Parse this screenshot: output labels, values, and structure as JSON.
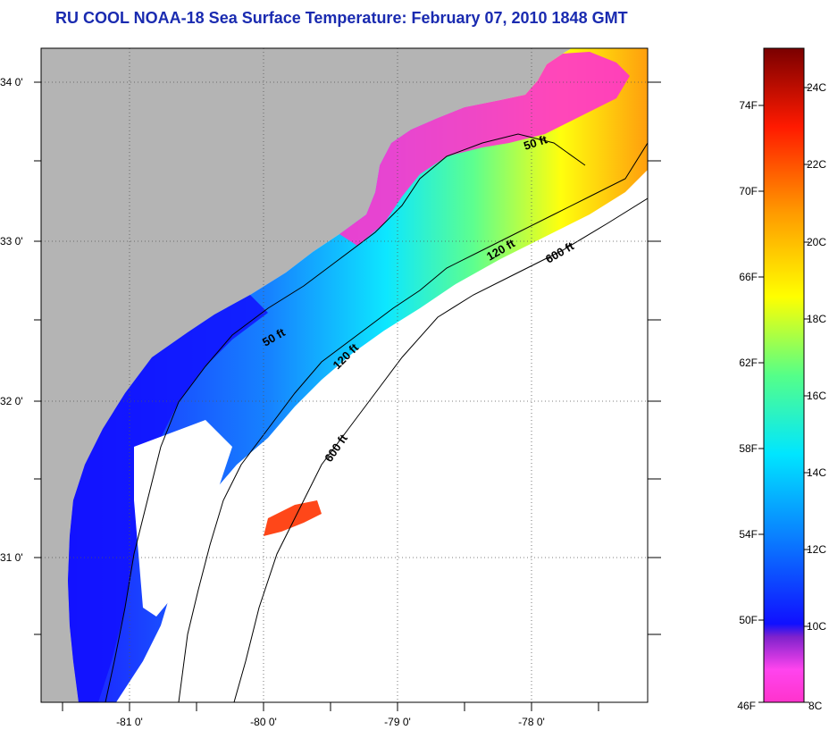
{
  "title": "RU COOL  NOAA-18  Sea Surface Temperature:  February 07, 2010 1848 GMT",
  "colors": {
    "land": "#b4b4b4",
    "title": "#1a2bb0",
    "colorbar_stops": [
      "#ff33cc",
      "#ff44ee",
      "#7f22cc",
      "#1010ff",
      "#0a7dff",
      "#00e6ff",
      "#55ff88",
      "#ffff00",
      "#ff9900",
      "#ff1a00",
      "#7a0000"
    ]
  },
  "axes": {
    "lat_labels": [
      "34 0'",
      "33 0'",
      "32 0'",
      "31 0'"
    ],
    "lon_labels": [
      "-81 0'",
      "-80 0'",
      "-79 0'",
      "-78 0'"
    ]
  },
  "contours": {
    "labels": [
      "50 ft",
      "120 ft",
      "600 ft",
      "50 ft",
      "120 ft",
      "600 ft"
    ]
  },
  "colorbar": {
    "fahrenheit": [
      "74F",
      "70F",
      "66F",
      "62F",
      "58F",
      "54F",
      "50F",
      "46F"
    ],
    "celsius": [
      "24C",
      "22C",
      "20C",
      "18C",
      "16C",
      "14C",
      "12C",
      "10C",
      "8C"
    ]
  }
}
